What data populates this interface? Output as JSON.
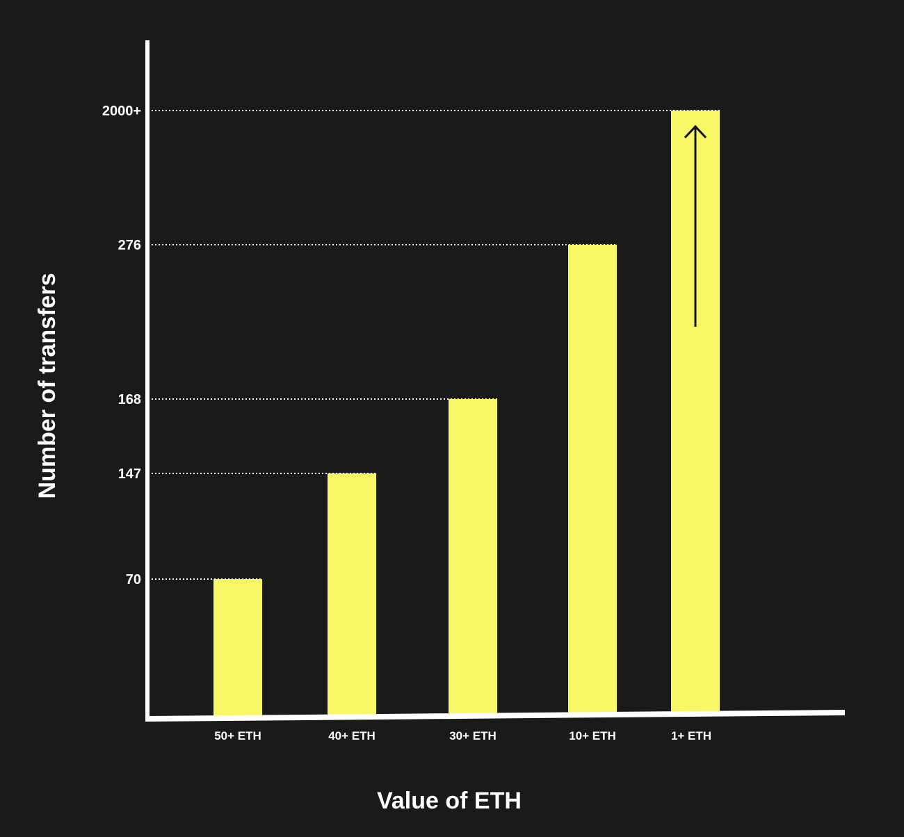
{
  "chart_data": {
    "type": "bar",
    "title": "",
    "xlabel": "Value of ETH",
    "ylabel": "Number of transfers",
    "categories": [
      "50+ ETH",
      "40+ ETH",
      "30+ ETH",
      "10+ ETH",
      "1+ ETH"
    ],
    "values": [
      70,
      147,
      168,
      276,
      2000
    ],
    "value_labels": [
      "70",
      "147",
      "168",
      "276",
      "2000+"
    ],
    "scale": "non-linear (axis broken, values positioned at labeled ticks)",
    "grid": "dotted reference lines from y-axis to each bar top",
    "annotations": [
      "upward arrow inside 1+ ETH bar"
    ],
    "colors": {
      "background": "#1a1a1a",
      "bar": "#f8f867",
      "axis": "#ffffff",
      "text": "#ffffff",
      "arrow": "#111111"
    }
  }
}
